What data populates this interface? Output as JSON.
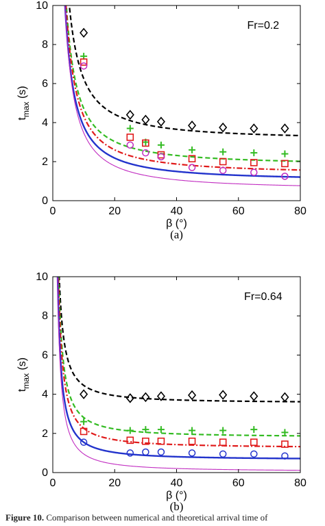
{
  "colors": {
    "black": "#000000",
    "green": "#33bb22",
    "red": "#e01a1a",
    "blue": "#2233cc",
    "magenta": "#c02ac0"
  },
  "caption": {
    "prefix": "Figure 10.",
    "text": " Comparison between numerical and theoretical arrival time of"
  },
  "chart_data": [
    {
      "type": "line",
      "panel_label": "(a)",
      "annotation": "Fr=0.2",
      "xlabel": "β (°)",
      "ylabel": "t_max (s)",
      "xlim": [
        0,
        80
      ],
      "ylim": [
        0,
        10
      ],
      "xticks": [
        0,
        20,
        40,
        60,
        80
      ],
      "yticks": [
        0,
        2,
        4,
        6,
        8,
        10
      ],
      "series": [
        {
          "style": "dashed",
          "color": "#000000",
          "marker": "diamond",
          "curve": {
            "a": 3.1,
            "b": 56
          },
          "x": [
            10,
            25,
            30,
            35,
            45,
            55,
            65,
            75
          ],
          "y": [
            8.6,
            4.4,
            4.15,
            4.05,
            3.85,
            3.75,
            3.7,
            3.7
          ]
        },
        {
          "style": "dashed",
          "color": "#33bb22",
          "marker": "plus",
          "curve": {
            "a": 1.8,
            "b": 52
          },
          "x": [
            10,
            25,
            30,
            35,
            45,
            55,
            65,
            75
          ],
          "y": [
            7.4,
            3.7,
            3.0,
            2.85,
            2.6,
            2.5,
            2.45,
            2.4
          ]
        },
        {
          "style": "dashdot",
          "color": "#e01a1a",
          "marker": "square",
          "curve": {
            "a": 1.35,
            "b": 53
          },
          "x": [
            10,
            25,
            30,
            35,
            45,
            55,
            65,
            75
          ],
          "y": [
            7.1,
            3.25,
            2.95,
            2.35,
            2.15,
            2.0,
            1.95,
            1.9
          ]
        },
        {
          "style": "solid",
          "color": "#2233cc",
          "marker": "none",
          "curve": {
            "a": 1.0,
            "b": 50
          },
          "x": [],
          "y": []
        },
        {
          "style": "thin",
          "color": "#c02ac0",
          "marker": "circle",
          "curve": {
            "a": 0.55,
            "b": 52
          },
          "x": [
            10,
            25,
            30,
            35,
            45,
            55,
            65,
            75
          ],
          "y": [
            6.9,
            2.85,
            2.45,
            2.25,
            1.7,
            1.55,
            1.45,
            1.25
          ]
        }
      ]
    },
    {
      "type": "line",
      "panel_label": "(b)",
      "annotation": "Fr=0.64",
      "xlabel": "β (°)",
      "ylabel": "t_max (s)",
      "xlim": [
        0,
        80
      ],
      "ylim": [
        0,
        10
      ],
      "xticks": [
        0,
        20,
        40,
        60,
        80
      ],
      "yticks": [
        0,
        2,
        4,
        6,
        8,
        10
      ],
      "series": [
        {
          "style": "dashed",
          "color": "#000000",
          "marker": "diamond",
          "curve": {
            "a": 3.55,
            "b": 16
          },
          "x": [
            10,
            25,
            30,
            35,
            45,
            55,
            65,
            75
          ],
          "y": [
            4.0,
            3.8,
            3.85,
            3.9,
            3.95,
            3.97,
            3.9,
            3.85
          ]
        },
        {
          "style": "dashed",
          "color": "#33bb22",
          "marker": "plus",
          "curve": {
            "a": 1.8,
            "b": 18
          },
          "x": [
            10,
            25,
            30,
            35,
            45,
            55,
            65,
            75
          ],
          "y": [
            2.6,
            2.15,
            2.2,
            2.2,
            2.15,
            2.15,
            2.2,
            2.05
          ]
        },
        {
          "style": "dashdot",
          "color": "#e01a1a",
          "marker": "square",
          "curve": {
            "a": 1.25,
            "b": 18
          },
          "x": [
            10,
            25,
            30,
            35,
            45,
            55,
            65,
            75
          ],
          "y": [
            2.1,
            1.65,
            1.6,
            1.6,
            1.6,
            1.55,
            1.55,
            1.45
          ]
        },
        {
          "style": "solid",
          "color": "#2233cc",
          "marker": "circle",
          "curve": {
            "a": 0.65,
            "b": 16
          },
          "x": [
            10,
            25,
            30,
            35,
            45,
            55,
            65,
            75
          ],
          "y": [
            1.55,
            1.0,
            1.05,
            1.05,
            1.0,
            0.95,
            0.95,
            0.85
          ]
        },
        {
          "style": "thin",
          "color": "#c02ac0",
          "marker": "none",
          "curve": {
            "a": 0.05,
            "b": 16
          },
          "x": [],
          "y": []
        }
      ]
    }
  ]
}
